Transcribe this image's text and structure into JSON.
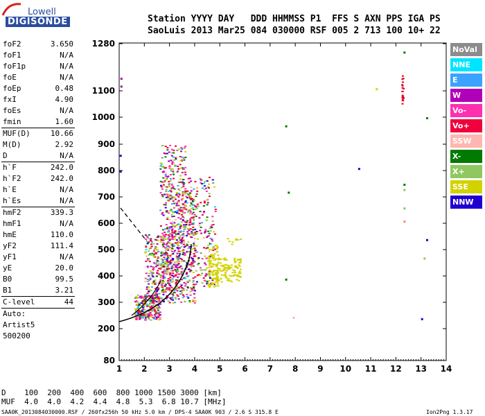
{
  "logo": {
    "line1": "Lowell",
    "line2": "DIGISONDE"
  },
  "header": {
    "row1": "Station YYYY DAY   DDD HHMMSS P1  FFS S AXN PPS IGA PS",
    "row2": "SaoLuis 2013 Mar25 084 030000 RSF 005 2 713 100 10+ 22"
  },
  "params": [
    {
      "name": "foF2",
      "value": "3.650"
    },
    {
      "name": "foF1",
      "value": "N/A"
    },
    {
      "name": "foF1p",
      "value": "N/A"
    },
    {
      "name": "foE",
      "value": "N/A"
    },
    {
      "name": "foEp",
      "value": "0.48"
    },
    {
      "name": "fxI",
      "value": "4.90"
    },
    {
      "name": "foEs",
      "value": "N/A"
    },
    {
      "name": "fmin",
      "value": "1.60"
    },
    {
      "sep": true
    },
    {
      "name": "MUF(D)",
      "value": "10.66"
    },
    {
      "name": "M(D)",
      "value": "2.92"
    },
    {
      "name": "D",
      "value": "N/A"
    },
    {
      "sep": true
    },
    {
      "name": "h`F",
      "value": "242.0"
    },
    {
      "name": "h`F2",
      "value": "242.0"
    },
    {
      "name": "h`E",
      "value": "N/A"
    },
    {
      "name": "h`Es",
      "value": "N/A"
    },
    {
      "sep": true
    },
    {
      "name": "hmF2",
      "value": "339.3"
    },
    {
      "name": "hmF1",
      "value": "N/A"
    },
    {
      "name": "hmE",
      "value": "110.0"
    },
    {
      "name": "yF2",
      "value": "111.4"
    },
    {
      "name": "yF1",
      "value": "N/A"
    },
    {
      "name": "yE",
      "value": "20.0"
    },
    {
      "name": "B0",
      "value": "99.5"
    },
    {
      "name": "B1",
      "value": "3.21"
    },
    {
      "sep": true
    },
    {
      "name": "C-level",
      "value": "44"
    },
    {
      "sep": true
    },
    {
      "name": "Auto:",
      "value": ""
    },
    {
      "name": "Artist5",
      "value": ""
    },
    {
      "name": "500200",
      "value": ""
    }
  ],
  "legend": [
    {
      "label": "NoVal",
      "color": "#8c8c8c"
    },
    {
      "label": "NNE",
      "color": "#00e5ff"
    },
    {
      "label": "E",
      "color": "#3ba3ff"
    },
    {
      "label": "W",
      "color": "#b000b8"
    },
    {
      "label": "Vo-",
      "color": "#ff2fb0"
    },
    {
      "label": "Vo+",
      "color": "#f0003c"
    },
    {
      "label": "SSW",
      "color": "#ffb6b0"
    },
    {
      "label": "X-",
      "color": "#007a00"
    },
    {
      "label": "X+",
      "color": "#8fc860"
    },
    {
      "label": "SSE",
      "color": "#d2d200"
    },
    {
      "label": "NNW",
      "color": "#2000d0"
    }
  ],
  "chart": {
    "x_ticks": [
      "1",
      "2",
      "3",
      "4",
      "5",
      "6",
      "7",
      "8",
      "9",
      "10",
      "11",
      "12",
      "13",
      "14"
    ],
    "y_ticks": [
      "80",
      "200",
      "300",
      "400",
      "500",
      "600",
      "700",
      "800",
      "900",
      "1000",
      "1100",
      "1280"
    ]
  },
  "footer": {
    "d_line": "D    100  200  400  600  800 1000 1500 3000 [km]",
    "muf_line": "MUF  4.0  4.0  4.2  4.4  4.8  5.3  6.8 10.7 [MHz]",
    "file_line": "SAA0K_2013084030000.RSF / 260fx256h 50 kHz 5.0 km / DPS-4 SAA0K 903 / 2.6 S 315.8 E",
    "version": "Ion2Png 1.3.17"
  }
}
